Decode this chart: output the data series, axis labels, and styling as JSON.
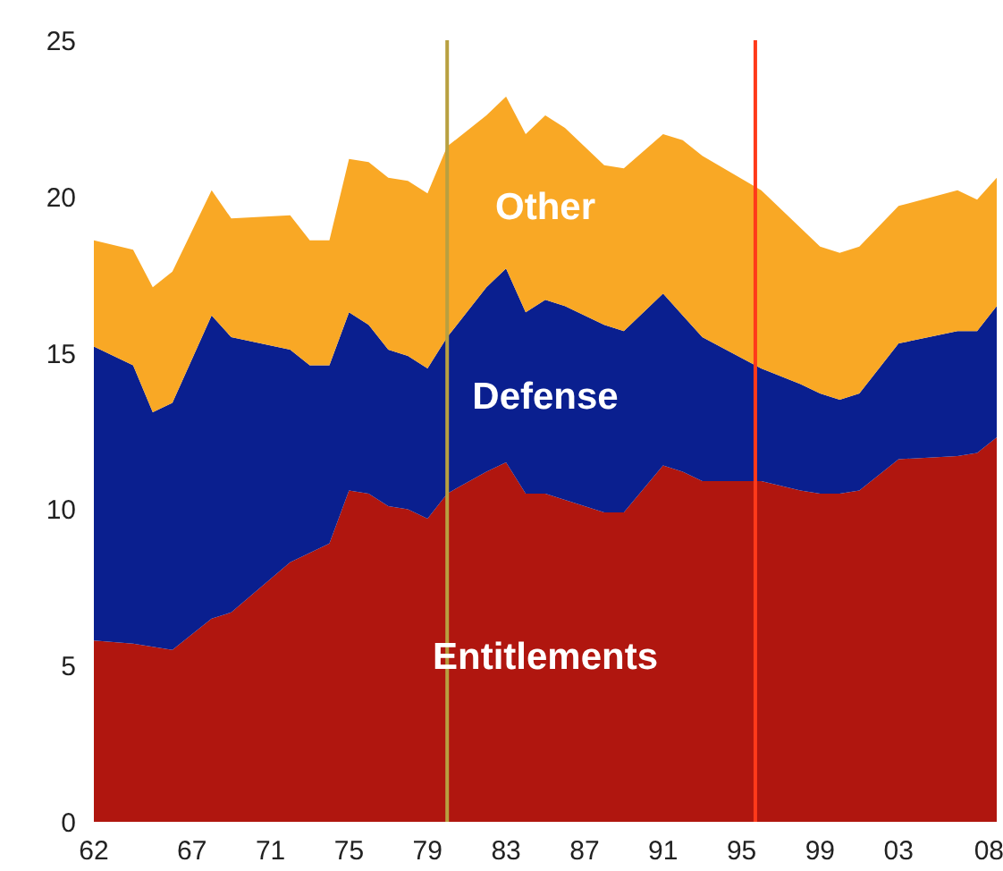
{
  "chart_data": {
    "type": "area",
    "stacked": true,
    "grid": false,
    "x": [
      1962,
      1964,
      1965,
      1966,
      1968,
      1969,
      1972,
      1973,
      1974,
      1975,
      1976,
      1977,
      1978,
      1979,
      1980,
      1982,
      1983,
      1984,
      1985,
      1986,
      1988,
      1989,
      1991,
      1992,
      1993,
      1996,
      1998,
      1999,
      2000,
      2001,
      2003,
      2006,
      2007,
      2008
    ],
    "xlim": [
      1962,
      2008
    ],
    "xticks": [
      {
        "value": 1962,
        "label": "62"
      },
      {
        "value": 1967,
        "label": "67"
      },
      {
        "value": 1971,
        "label": "71"
      },
      {
        "value": 1975,
        "label": "75"
      },
      {
        "value": 1979,
        "label": "79"
      },
      {
        "value": 1983,
        "label": "83"
      },
      {
        "value": 1987,
        "label": "87"
      },
      {
        "value": 1991,
        "label": "91"
      },
      {
        "value": 1995,
        "label": "95"
      },
      {
        "value": 1999,
        "label": "99"
      },
      {
        "value": 2003,
        "label": "03"
      },
      {
        "value": 2008,
        "label": "08"
      }
    ],
    "ylim": [
      0,
      25
    ],
    "yticks": [
      0,
      5,
      10,
      15,
      20,
      25
    ],
    "series": [
      {
        "name": "Entitlements",
        "color": "#b0160f",
        "values": [
          5.8,
          5.7,
          5.6,
          5.5,
          6.5,
          6.7,
          8.3,
          8.6,
          8.9,
          10.6,
          10.5,
          10.1,
          10.0,
          9.7,
          10.5,
          11.2,
          11.5,
          10.5,
          10.5,
          10.3,
          9.9,
          9.9,
          11.4,
          11.2,
          10.9,
          10.9,
          10.6,
          10.5,
          10.5,
          10.6,
          11.6,
          11.7,
          11.8,
          12.3
        ]
      },
      {
        "name": "Defense",
        "color": "#0a1f8f",
        "values": [
          9.4,
          8.9,
          7.5,
          7.9,
          9.7,
          8.8,
          6.8,
          6.0,
          5.7,
          5.7,
          5.4,
          5.0,
          4.9,
          4.8,
          5.0,
          5.9,
          6.2,
          5.8,
          6.2,
          6.2,
          6.0,
          5.8,
          5.5,
          5.0,
          4.6,
          3.6,
          3.4,
          3.2,
          3.0,
          3.1,
          3.7,
          4.0,
          3.9,
          4.2
        ]
      },
      {
        "name": "Other",
        "color": "#f9a825",
        "values": [
          3.4,
          3.7,
          4.0,
          4.2,
          4.0,
          3.8,
          4.3,
          4.0,
          4.0,
          4.9,
          5.2,
          5.5,
          5.6,
          5.6,
          6.1,
          5.5,
          5.5,
          5.7,
          5.9,
          5.7,
          5.1,
          5.2,
          5.1,
          5.6,
          5.8,
          5.7,
          5.0,
          4.7,
          4.7,
          4.7,
          4.4,
          4.5,
          4.2,
          4.1
        ]
      }
    ],
    "ref_lines": [
      {
        "axis": "x",
        "value": 1980.0,
        "color": "#b8a040"
      },
      {
        "axis": "x",
        "value": 1995.7,
        "color": "#ff3a1a"
      }
    ]
  }
}
